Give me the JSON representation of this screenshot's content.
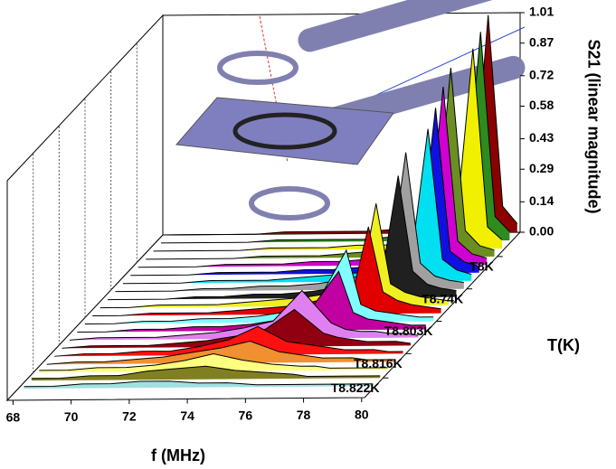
{
  "chart_data": {
    "type": "waterfall3d",
    "xlabel": "f (MHz)",
    "ylabel": "S21 (linear magnitude)",
    "zlabel": "T(K)",
    "x": [
      68,
      69,
      70,
      71,
      72,
      73,
      74,
      75,
      76,
      77,
      77.5,
      78,
      78.5,
      79,
      79.5,
      80
    ],
    "xlim": [
      67.8,
      80.1
    ],
    "xticks": [
      68,
      70,
      72,
      74,
      76,
      78,
      80
    ],
    "ylim": [
      0,
      1.01
    ],
    "yticks": [
      {
        "value": 0,
        "label": "0.00"
      },
      0.14,
      0.29,
      0.43,
      0.58,
      0.72,
      0.87,
      1.01
    ],
    "zcategories": [
      null,
      null,
      null,
      "T8K",
      null,
      null,
      null,
      "T8.74K",
      null,
      null,
      null,
      "T8.803K",
      null,
      null,
      null,
      "T8.816K",
      null,
      null,
      "T8.822K",
      null
    ],
    "series": [
      {
        "color": "#8b0000",
        "values": [
          0,
          0,
          0,
          0,
          0.01,
          0.01,
          0.01,
          0.01,
          0.02,
          0.03,
          0.04,
          0.07,
          0.18,
          1.0,
          0.12,
          0.04
        ]
      },
      {
        "color": "#2e8b1e",
        "values": [
          0,
          0,
          0,
          0,
          0.01,
          0.01,
          0.01,
          0.01,
          0.02,
          0.03,
          0.04,
          0.07,
          0.2,
          0.96,
          0.11,
          0.04
        ]
      },
      {
        "color": "#f0f000",
        "values": [
          0,
          0,
          0,
          0,
          0.01,
          0.01,
          0.01,
          0.02,
          0.02,
          0.03,
          0.05,
          0.08,
          0.22,
          0.92,
          0.1,
          0.04
        ]
      },
      {
        "color": "#6b8e23",
        "values": [
          0,
          0,
          0,
          0,
          0.01,
          0.01,
          0.01,
          0.02,
          0.03,
          0.04,
          0.07,
          0.15,
          0.87,
          0.12,
          0.05,
          0.03
        ]
      },
      {
        "color": "#d000d0",
        "values": [
          0,
          0,
          0,
          0.01,
          0.01,
          0.01,
          0.02,
          0.02,
          0.03,
          0.05,
          0.07,
          0.16,
          0.82,
          0.11,
          0.05,
          0.03
        ]
      },
      {
        "color": "#1010e0",
        "values": [
          0,
          0,
          0,
          0.01,
          0.01,
          0.01,
          0.02,
          0.02,
          0.03,
          0.05,
          0.08,
          0.17,
          0.76,
          0.1,
          0.05,
          0.03
        ]
      },
      {
        "color": "#00e0f0",
        "values": [
          0,
          0,
          0,
          0.01,
          0.01,
          0.01,
          0.02,
          0.03,
          0.04,
          0.06,
          0.09,
          0.18,
          0.7,
          0.1,
          0.05,
          0.03
        ]
      },
      {
        "color": "#a0a0a0",
        "values": [
          0,
          0,
          0,
          0.01,
          0.01,
          0.02,
          0.02,
          0.03,
          0.05,
          0.08,
          0.15,
          0.63,
          0.12,
          0.06,
          0.04,
          0.03
        ]
      },
      {
        "color": "#202020",
        "values": [
          0,
          0,
          0,
          0.01,
          0.01,
          0.02,
          0.02,
          0.03,
          0.05,
          0.08,
          0.15,
          0.56,
          0.12,
          0.06,
          0.04,
          0.03
        ]
      },
      {
        "color": "#f0f020",
        "values": [
          0,
          0,
          0.01,
          0.01,
          0.01,
          0.02,
          0.03,
          0.04,
          0.06,
          0.12,
          0.47,
          0.1,
          0.06,
          0.04,
          0.03,
          0.02
        ]
      },
      {
        "color": "#e00000",
        "values": [
          0,
          0,
          0.01,
          0.01,
          0.01,
          0.02,
          0.03,
          0.04,
          0.07,
          0.12,
          0.4,
          0.1,
          0.06,
          0.04,
          0.03,
          0.02
        ]
      },
      {
        "color": "#80ffff",
        "values": [
          0,
          0,
          0.01,
          0.01,
          0.02,
          0.02,
          0.03,
          0.05,
          0.09,
          0.33,
          0.08,
          0.05,
          0.04,
          0.03,
          0.02,
          0.02
        ]
      },
      {
        "color": "#c000a0",
        "values": [
          0,
          0,
          0.01,
          0.01,
          0.02,
          0.02,
          0.03,
          0.05,
          0.09,
          0.27,
          0.08,
          0.05,
          0.04,
          0.03,
          0.02,
          0.02
        ]
      },
      {
        "color": "#e080f0",
        "values": [
          0,
          0.01,
          0.01,
          0.01,
          0.02,
          0.03,
          0.05,
          0.08,
          0.22,
          0.07,
          0.04,
          0.03,
          0.03,
          0.02,
          0.02,
          0.01
        ]
      },
      {
        "color": "#900010",
        "values": [
          0,
          0.01,
          0.01,
          0.01,
          0.02,
          0.03,
          0.05,
          0.08,
          0.17,
          0.06,
          0.04,
          0.03,
          0.02,
          0.02,
          0.02,
          0.01
        ]
      },
      {
        "color": "#ff1010",
        "values": [
          0,
          0.01,
          0.01,
          0.02,
          0.02,
          0.04,
          0.07,
          0.13,
          0.06,
          0.04,
          0.03,
          0.02,
          0.02,
          0.02,
          0.01,
          0.01
        ]
      },
      {
        "color": "#f09030",
        "values": [
          0,
          0.01,
          0.01,
          0.02,
          0.03,
          0.05,
          0.07,
          0.1,
          0.05,
          0.03,
          0.02,
          0.02,
          0.02,
          0.01,
          0.01,
          0.01
        ]
      },
      {
        "color": "#ffff80",
        "values": [
          0.01,
          0.01,
          0.02,
          0.02,
          0.03,
          0.05,
          0.08,
          0.05,
          0.03,
          0.02,
          0.02,
          0.01,
          0.01,
          0.01,
          0.01,
          0.01
        ]
      },
      {
        "color": "#808020",
        "values": [
          0.01,
          0.01,
          0.02,
          0.02,
          0.04,
          0.05,
          0.06,
          0.04,
          0.03,
          0.02,
          0.01,
          0.01,
          0.01,
          0.01,
          0.01,
          0.01
        ]
      },
      {
        "color": "#a0e0e0",
        "values": [
          0.01,
          0.01,
          0.02,
          0.02,
          0.03,
          0.03,
          0.02,
          0.02,
          0.01,
          0.01,
          0.01,
          0.01,
          0.01,
          0.01,
          0.01,
          0.01
        ]
      }
    ]
  }
}
